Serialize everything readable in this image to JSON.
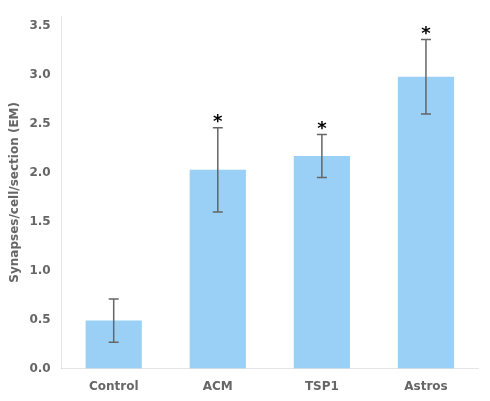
{
  "chart_data": {
    "type": "bar",
    "categories": [
      "Control",
      "ACM",
      "TSP1",
      "Astros"
    ],
    "values": [
      0.49,
      2.03,
      2.17,
      2.98
    ],
    "errors": [
      0.22,
      0.43,
      0.22,
      0.38
    ],
    "ylabel": "Synapses/cell/section (EM)",
    "ylim": [
      0,
      3.6
    ],
    "yticks": [
      {
        "value": 0,
        "label": "0.0"
      },
      0.5,
      {
        "value": 1,
        "label": "1.0"
      },
      1.5,
      {
        "value": 2,
        "label": "2.0"
      },
      2.5,
      {
        "value": 3,
        "label": "3.0"
      },
      3.5
    ],
    "annotations": [
      {
        "category": "ACM",
        "text": "*"
      },
      {
        "category": "TSP1",
        "text": "*"
      },
      {
        "category": "Astros",
        "text": "*"
      }
    ],
    "grid": false
  }
}
